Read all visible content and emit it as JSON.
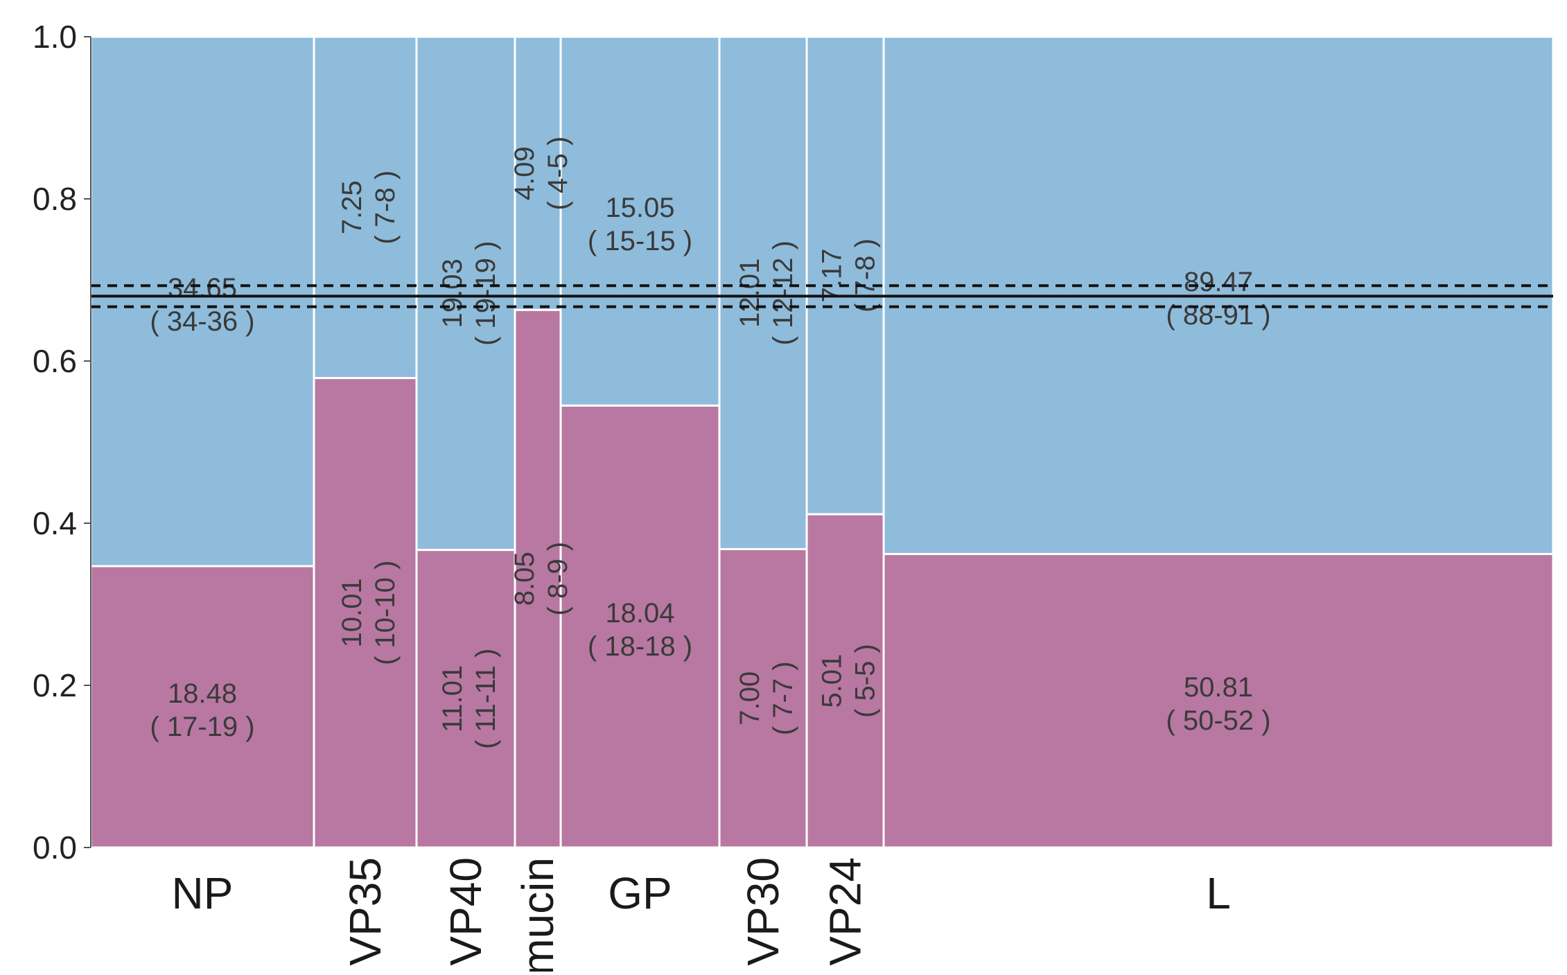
{
  "chart_data": {
    "type": "mosaic",
    "ylim": [
      0,
      1
    ],
    "yticks": [
      "0.0",
      "0.2",
      "0.4",
      "0.6",
      "0.8",
      "1.0"
    ],
    "grid": false,
    "legend": "none",
    "colors": {
      "top": "#8fbcdb",
      "bottom": "#b878a1",
      "border": "#ffffff",
      "line": "#111111"
    },
    "reference_line": {
      "value": 0.68,
      "lower": 0.667,
      "upper": 0.693
    },
    "categories": [
      {
        "name": "NP",
        "rotate": false,
        "split": 0.347,
        "top": {
          "value": "34.65",
          "range": "( 34-36 )",
          "rotate": false
        },
        "bottom": {
          "value": "18.48",
          "range": "( 17-19 )",
          "rotate": false
        }
      },
      {
        "name": "VP35",
        "rotate": true,
        "split": 0.579,
        "top": {
          "value": "7.25",
          "range": "( 7-8 )",
          "rotate": true
        },
        "bottom": {
          "value": "10.01",
          "range": "( 10-10 )",
          "rotate": true
        }
      },
      {
        "name": "VP40",
        "rotate": true,
        "split": 0.367,
        "top": {
          "value": "19.03",
          "range": "( 19-19 )",
          "rotate": true
        },
        "bottom": {
          "value": "11.01",
          "range": "( 11-11 )",
          "rotate": true
        }
      },
      {
        "name": "mucin",
        "rotate": true,
        "split": 0.663,
        "top": {
          "value": "4.09",
          "range": "( 4-5 )",
          "rotate": true
        },
        "bottom": {
          "value": "8.05",
          "range": "( 8-9 )",
          "rotate": true
        }
      },
      {
        "name": "GP",
        "rotate": false,
        "split": 0.545,
        "top": {
          "value": "15.05",
          "range": "( 15-15 )",
          "rotate": false
        },
        "bottom": {
          "value": "18.04",
          "range": "( 18-18 )",
          "rotate": false
        }
      },
      {
        "name": "VP30",
        "rotate": true,
        "split": 0.368,
        "top": {
          "value": "12.01",
          "range": "( 12-12 )",
          "rotate": true
        },
        "bottom": {
          "value": "7.00",
          "range": "( 7-7 )",
          "rotate": true
        }
      },
      {
        "name": "VP24",
        "rotate": true,
        "split": 0.411,
        "top": {
          "value": "7.17",
          "range": "( 7-8 )",
          "rotate": true
        },
        "bottom": {
          "value": "5.01",
          "range": "( 5-5 )",
          "rotate": true
        }
      },
      {
        "name": "L",
        "rotate": false,
        "split": 0.362,
        "top": {
          "value": "89.47",
          "range": "( 88-91 )",
          "rotate": false
        },
        "bottom": {
          "value": "50.81",
          "range": "( 50-52 )",
          "rotate": false
        }
      }
    ]
  }
}
